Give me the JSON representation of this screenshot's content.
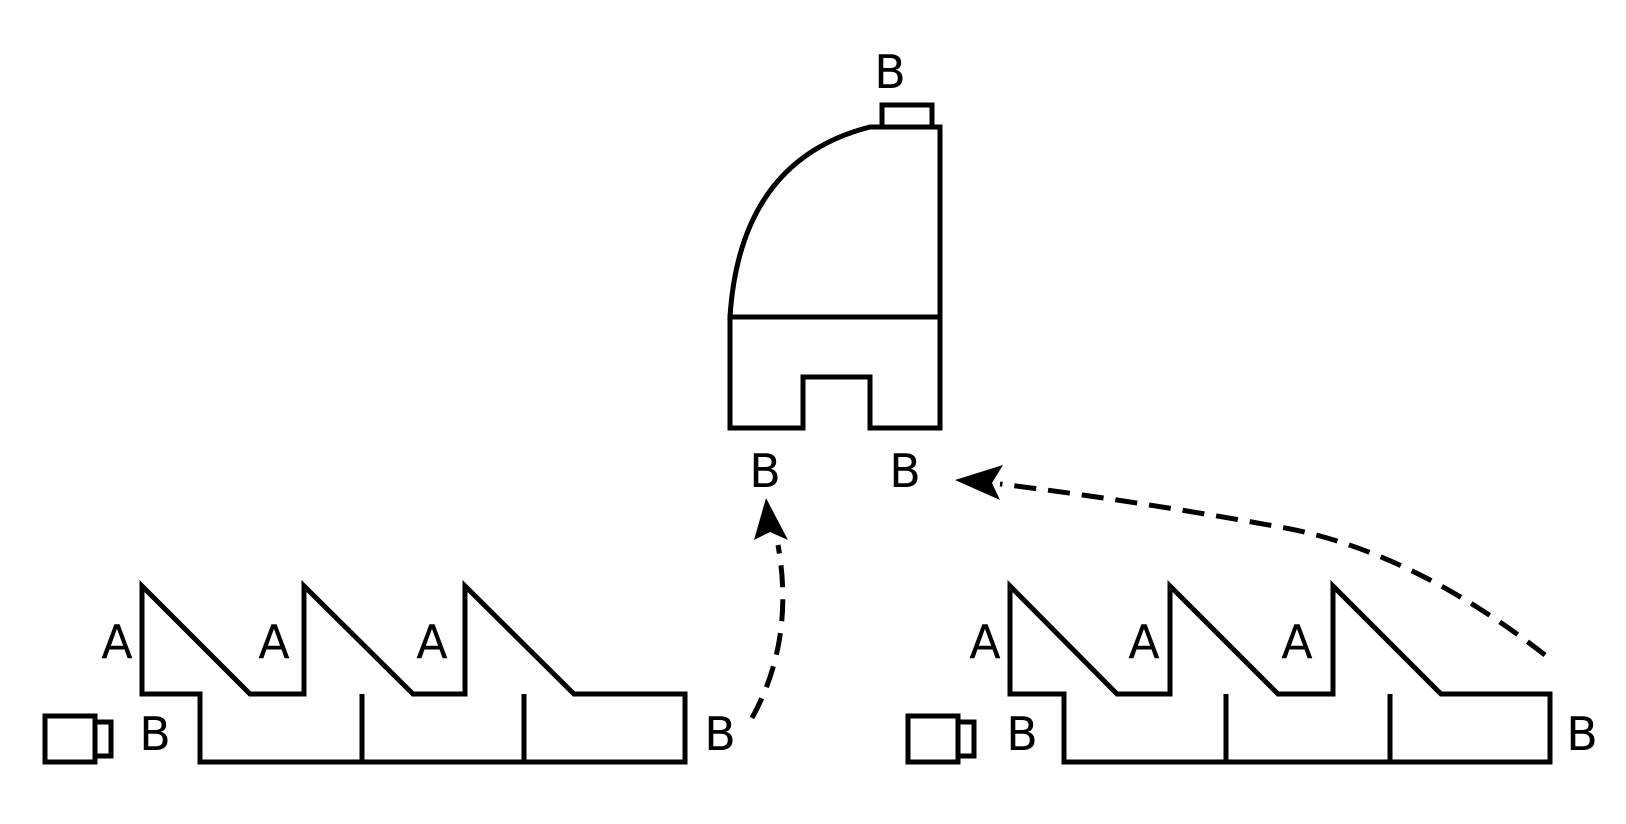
{
  "labels": {
    "a": "A",
    "b": "B"
  },
  "colors": {
    "stroke": "#000000",
    "background": "#ffffff"
  }
}
